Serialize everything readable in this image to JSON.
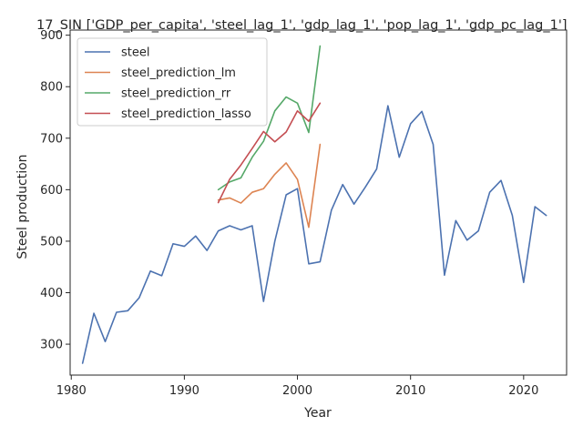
{
  "chart_data": {
    "type": "line",
    "title": "17_SIN ['GDP_per_capita', 'steel_lag_1', 'gdp_lag_1', 'pop_lag_1', 'gdp_pc_lag_1']",
    "xlabel": "Year",
    "ylabel": "Steel production",
    "xlim": [
      1979.9,
      2023.8
    ],
    "ylim": [
      240,
      910
    ],
    "x_ticks": [
      1980,
      1990,
      2000,
      2010,
      2020
    ],
    "y_ticks": [
      300,
      400,
      500,
      600,
      700,
      800,
      900
    ],
    "grid": false,
    "legend_position": "top-left",
    "series": [
      {
        "name": "steel",
        "color": "#4c72b0",
        "x": [
          1981,
          1982,
          1983,
          1984,
          1985,
          1986,
          1987,
          1988,
          1989,
          1990,
          1991,
          1992,
          1993,
          1994,
          1995,
          1996,
          1997,
          1998,
          1999,
          2000,
          2001,
          2002,
          2003,
          2004,
          2005,
          2006,
          2007,
          2008,
          2009,
          2010,
          2011,
          2012,
          2013,
          2014,
          2015,
          2016,
          2017,
          2018,
          2019,
          2020,
          2021,
          2022
        ],
        "y": [
          263,
          360,
          305,
          362,
          365,
          390,
          442,
          433,
          495,
          490,
          510,
          482,
          520,
          530,
          522,
          530,
          383,
          500,
          590,
          602,
          456,
          460,
          560,
          610,
          572,
          605,
          640,
          763,
          663,
          728,
          752,
          688,
          434,
          540,
          502,
          520,
          595,
          618,
          550,
          420,
          567,
          550
        ]
      },
      {
        "name": "steel_prediction_lm",
        "color": "#dd8452",
        "x": [
          1993,
          1994,
          1995,
          1996,
          1997,
          1998,
          1999,
          2000,
          2001,
          2002
        ],
        "y": [
          580,
          584,
          574,
          595,
          602,
          630,
          652,
          620,
          527,
          688
        ]
      },
      {
        "name": "steel_prediction_rr",
        "color": "#55a868",
        "x": [
          1993,
          1994,
          1995,
          1996,
          1997,
          1998,
          1999,
          2000,
          2001,
          2002
        ],
        "y": [
          600,
          615,
          623,
          663,
          694,
          753,
          780,
          768,
          711,
          879
        ]
      },
      {
        "name": "steel_prediction_lasso",
        "color": "#c44e52",
        "x": [
          1993,
          1994,
          1995,
          1996,
          1997,
          1998,
          1999,
          2000,
          2001,
          2002
        ],
        "y": [
          575,
          620,
          648,
          680,
          713,
          693,
          712,
          753,
          733,
          768
        ]
      }
    ]
  }
}
